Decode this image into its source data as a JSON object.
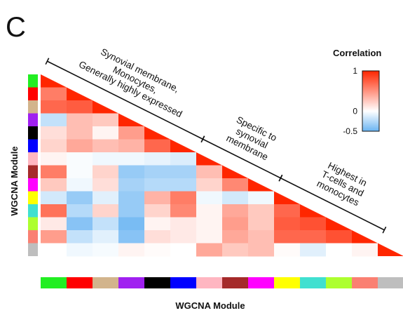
{
  "panel_letter": "C",
  "chart_data": {
    "type": "heatmap",
    "title": "",
    "xlabel": "WGCNA Module",
    "ylabel": "WGCNA Module",
    "shape": "lower-triangle correlation matrix",
    "modules": [
      "green",
      "red",
      "tan",
      "purple",
      "black",
      "blue",
      "pink",
      "brown",
      "magenta",
      "yellow",
      "turquoise",
      "greenyellow",
      "salmon",
      "grey"
    ],
    "module_colors": [
      "#22ee22",
      "#ff0000",
      "#d2b48c",
      "#a020f0",
      "#000000",
      "#0000ff",
      "#ffb6c1",
      "#a52a2a",
      "#ff00ff",
      "#ffff00",
      "#40e0d0",
      "#adff2f",
      "#fa8072",
      "#bebebe"
    ],
    "values": [
      [
        1.0
      ],
      [
        0.6,
        1.0
      ],
      [
        0.7,
        0.75,
        1.0
      ],
      [
        -0.2,
        0.3,
        0.25,
        1.0
      ],
      [
        0.15,
        0.3,
        0.05,
        0.45,
        1.0
      ],
      [
        0.2,
        0.4,
        0.3,
        0.35,
        0.7,
        1.0
      ],
      [
        0.05,
        -0.02,
        -0.05,
        -0.05,
        -0.08,
        -0.12,
        1.0
      ],
      [
        0.6,
        -0.02,
        0.2,
        -0.35,
        -0.3,
        -0.3,
        0.3,
        1.0
      ],
      [
        0.25,
        -0.05,
        0.15,
        -0.3,
        -0.25,
        -0.25,
        0.2,
        0.55,
        1.0
      ],
      [
        -0.15,
        -0.35,
        -0.1,
        -0.35,
        0.35,
        0.6,
        -0.05,
        -0.15,
        -0.05,
        1.0
      ],
      [
        0.65,
        -0.25,
        0.2,
        -0.35,
        0.2,
        0.55,
        0.05,
        0.4,
        0.25,
        0.7,
        1.0
      ],
      [
        0.1,
        -0.4,
        -0.2,
        -0.45,
        0.05,
        0.1,
        0.05,
        0.45,
        0.25,
        0.75,
        0.8,
        1.0
      ],
      [
        0.45,
        -0.2,
        -0.1,
        -0.4,
        0.15,
        0.1,
        0.05,
        0.4,
        0.3,
        0.7,
        0.7,
        0.8,
        1.0
      ],
      [
        0.0,
        -0.05,
        -0.03,
        0.05,
        0.02,
        0.0,
        0.4,
        0.25,
        0.3,
        0.02,
        -0.1,
        0.0,
        0.05,
        1.0
      ]
    ],
    "color_scale": {
      "title": "Correlation",
      "min": -0.5,
      "max": 1,
      "ticks": [
        {
          "value": 1,
          "label": "1"
        },
        {
          "value": 0,
          "label": "0"
        },
        {
          "value": -0.5,
          "label": "-0.5"
        }
      ],
      "low_color": "#6ab4f2",
      "mid_color": "#ffffff",
      "high_color": "#ff2600"
    },
    "annotations": [
      {
        "lines": [
          "Synovial membrane,",
          "Monocytes,",
          "Generally highly expressed"
        ],
        "start_module": 0,
        "end_module": 5
      },
      {
        "lines": [
          "Specific to",
          "synovial",
          "membrane"
        ],
        "start_module": 6,
        "end_module": 8
      },
      {
        "lines": [
          "Highest in",
          "T-cells and",
          "monocytes"
        ],
        "start_module": 9,
        "end_module": 12
      }
    ]
  }
}
